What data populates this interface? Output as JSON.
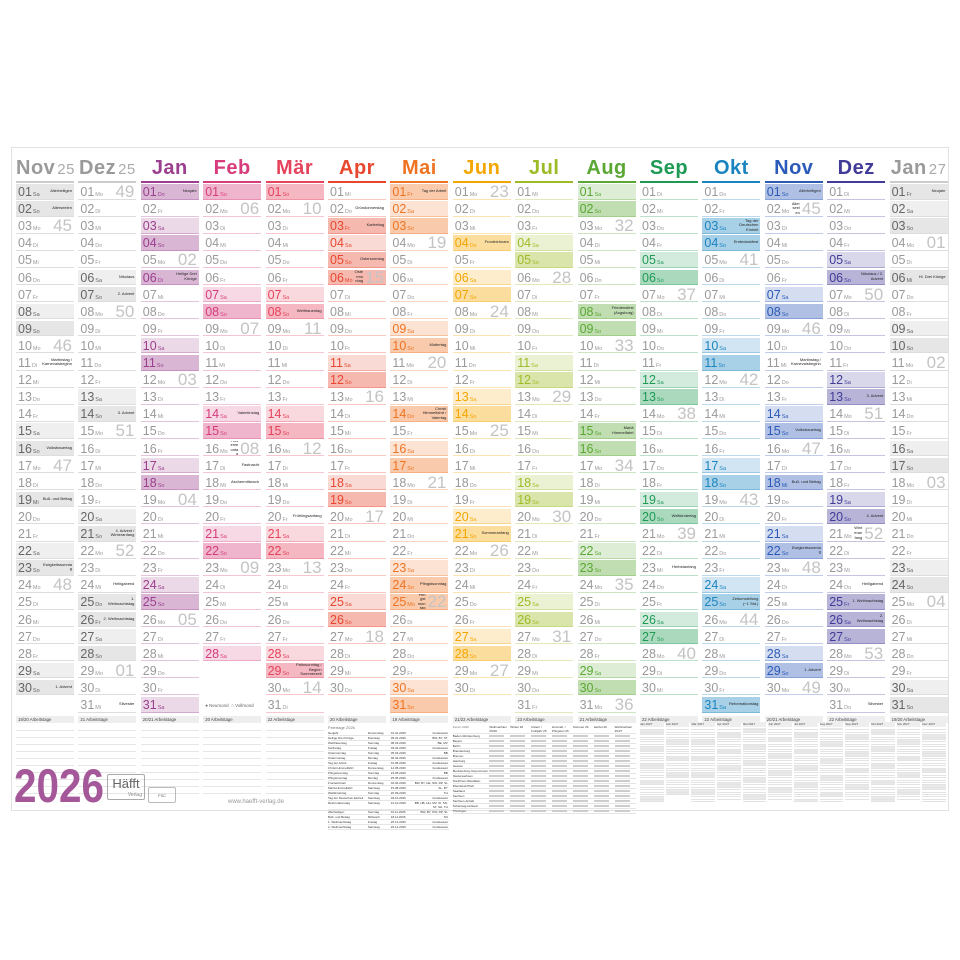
{
  "weekdays": [
    "Mo",
    "Di",
    "Mi",
    "Do",
    "Fr",
    "Sa",
    "So"
  ],
  "months": [
    {
      "name": "Nov",
      "suffix": "25",
      "year": 2025,
      "month": 11,
      "color": "#9a9a9a",
      "workdays": "19/20 Arbeitstage",
      "highlight": [
        1,
        19
      ],
      "labels": {
        "1": "Allerheiligen",
        "2": "Allerseelen",
        "11": "Martinstag / Karnevalsbeginn",
        "16": "Volkstrauertag",
        "19": "Buß- und Bettag",
        "23": "Ewigkeitssonntag",
        "30": "1. Advent"
      }
    },
    {
      "name": "Dez",
      "suffix": "25",
      "year": 2025,
      "month": 12,
      "color": "#9a9a9a",
      "workdays": "21 Arbeitstage",
      "highlight": [
        25,
        26
      ],
      "labels": {
        "6": "Nikolaus",
        "7": "2. Advent",
        "14": "3. Advent",
        "21": "4. Advent / Winteranfang",
        "24": "Heiligabend",
        "25": "1. Weihnachtstag",
        "26": "2. Weihnachtstag",
        "31": "Silvester"
      }
    },
    {
      "name": "Jan",
      "suffix": "",
      "year": 2026,
      "month": 1,
      "color": "#9c3f8e",
      "workdays": "20/21 Arbeitstage",
      "highlight": [
        1,
        6
      ],
      "labels": {
        "1": "Neujahr",
        "6": "Heilige Drei Könige"
      }
    },
    {
      "name": "Feb",
      "suffix": "",
      "year": 2026,
      "month": 2,
      "color": "#d63c7c",
      "workdays": "20 Arbeitstage",
      "highlight": [],
      "labels": {
        "14": "Valentinstag",
        "16": "Rosenmontag",
        "17": "Fastnacht",
        "18": "Aschermittwoch"
      }
    },
    {
      "name": "Mär",
      "suffix": "",
      "year": 2026,
      "month": 3,
      "color": "#e6435c",
      "workdays": "22 Arbeitstage",
      "highlight": [],
      "labels": {
        "8": "Weltfrauentag",
        "20": "Frühlingsanfang",
        "29": "Palmsonntag / Beginn Sommerzeit"
      }
    },
    {
      "name": "Apr",
      "suffix": "",
      "year": 2026,
      "month": 4,
      "color": "#e8472f",
      "workdays": "20 Arbeitstage",
      "highlight": [
        3,
        6
      ],
      "labels": {
        "2": "Gründonnerstag",
        "3": "Karfreitag",
        "5": "Ostersonntag",
        "6": "Ostermontag"
      }
    },
    {
      "name": "Mai",
      "suffix": "",
      "year": 2026,
      "month": 5,
      "color": "#ee7423",
      "workdays": "19 Arbeitstage",
      "highlight": [
        1,
        14,
        25
      ],
      "labels": {
        "1": "Tag der Arbeit",
        "10": "Muttertag",
        "14": "Christi Himmelfahrt / Vatertag",
        "24": "Pfingstsonntag",
        "25": "Pfingstmontag"
      }
    },
    {
      "name": "Jun",
      "suffix": "",
      "year": 2026,
      "month": 6,
      "color": "#f4a600",
      "workdays": "21/22 Arbeitstage",
      "highlight": [
        4
      ],
      "labels": {
        "4": "Fronleichnam",
        "21": "Sommeranfang"
      }
    },
    {
      "name": "Jul",
      "suffix": "",
      "year": 2026,
      "month": 7,
      "color": "#9dbb24",
      "workdays": "23 Arbeitstage",
      "highlight": [],
      "labels": {}
    },
    {
      "name": "Aug",
      "suffix": "",
      "year": 2026,
      "month": 8,
      "color": "#5aa833",
      "workdays": "21 Arbeitstage",
      "highlight": [
        8,
        15
      ],
      "labels": {
        "8": "Friedensfest (Augsburg)",
        "15": "Mariä Himmelfahrt"
      }
    },
    {
      "name": "Sep",
      "suffix": "",
      "year": 2026,
      "month": 9,
      "color": "#1f9a55",
      "workdays": "22 Arbeitstage",
      "highlight": [],
      "labels": {
        "20": "Weltkindertag",
        "23": "Herbstanfang"
      }
    },
    {
      "name": "Okt",
      "suffix": "",
      "year": 2026,
      "month": 10,
      "color": "#1a84c0",
      "workdays": "22 Arbeitstage",
      "highlight": [
        3,
        31
      ],
      "labels": {
        "3": "Tag der Deutschen Einheit",
        "4": "Erntedankfest",
        "25": "Zeitumstellung (−1 Std.)",
        "31": "Reformationstag"
      }
    },
    {
      "name": "Nov",
      "suffix": "",
      "year": 2026,
      "month": 11,
      "color": "#2c5ab8",
      "workdays": "20/21 Arbeitstage",
      "highlight": [
        1,
        18
      ],
      "labels": {
        "1": "Allerheiligen",
        "2": "Allerseelen",
        "11": "Martinstag / Karnevalsbeginn",
        "15": "Volkstrauertag",
        "18": "Buß- und Bettag",
        "22": "Ewigkeitssonntag",
        "29": "1. Advent"
      }
    },
    {
      "name": "Dez",
      "suffix": "",
      "year": 2026,
      "month": 12,
      "color": "#423b98",
      "workdays": "22 Arbeitstage",
      "highlight": [
        25,
        26
      ],
      "labels": {
        "6": "Nikolaus / 2. Advent",
        "13": "3. Advent",
        "20": "4. Advent",
        "21": "Winteranfang",
        "24": "Heiligabend",
        "25": "1. Weihnachtstag",
        "26": "2. Weihnachtstag",
        "31": "Silvester"
      }
    },
    {
      "name": "Jan",
      "suffix": "27",
      "year": 2027,
      "month": 1,
      "color": "#9a9a9a",
      "workdays": "19/20 Arbeitstage",
      "highlight": [
        1,
        6
      ],
      "labels": {
        "1": "Neujahr",
        "6": "Hl. Drei Könige"
      }
    }
  ],
  "legend": {
    "new_moon": "● Neumond",
    "full_moon": "○ Vollmond"
  },
  "year_title": "2026",
  "brand": {
    "name": "Häfft",
    "sub": "Verlag",
    "fsc": "FSC"
  },
  "url": "www.haefft-verlag.de",
  "holidays_table": {
    "title": "Feiertage 2026",
    "rows": [
      [
        "Neujahr",
        "Donnerstag",
        "01.01.2026",
        "bundesweit"
      ],
      [
        "Heilige Drei Könige",
        "Dienstag",
        "06.01.2026",
        "BW, BY, ST"
      ],
      [
        "Weltfrauentag",
        "Sonntag",
        "08.03.2026",
        "BE, MV"
      ],
      [
        "Karfreitag",
        "Freitag",
        "03.04.2026",
        "bundesweit"
      ],
      [
        "Ostersonntag",
        "Sonntag",
        "05.04.2026",
        "BB"
      ],
      [
        "Ostermontag",
        "Montag",
        "06.04.2026",
        "bundesweit"
      ],
      [
        "Tag der Arbeit",
        "Freitag",
        "01.05.2026",
        "bundesweit"
      ],
      [
        "Christi Himmelfahrt",
        "Donnerstag",
        "14.05.2026",
        "bundesweit"
      ],
      [
        "Pfingstsonntag",
        "Sonntag",
        "24.05.2026",
        "BB"
      ],
      [
        "Pfingstmontag",
        "Montag",
        "25.05.2026",
        "bundesweit"
      ],
      [
        "Fronleichnam",
        "Donnerstag",
        "04.06.2026",
        "BW, BY, HE, NW, RP, SL"
      ],
      [
        "Mariä Himmelfahrt",
        "Samstag",
        "15.08.2026",
        "SL, BY"
      ],
      [
        "Weltkindertag",
        "Sonntag",
        "20.09.2026",
        "TH"
      ],
      [
        "Tag der Deutschen Einheit",
        "Samstag",
        "03.10.2026",
        "bundesweit"
      ],
      [
        "Reformationstag",
        "Samstag",
        "31.10.2026",
        "BB, HB, HH, MV, NI, SN, ST, SH, TH"
      ],
      [
        "Allerheiligen",
        "Sonntag",
        "01.11.2026",
        "BW, BY, NW, RP, SL"
      ],
      [
        "Buß- und Bettag",
        "Mittwoch",
        "18.11.2026",
        "SN"
      ],
      [
        "1. Weihnachtstag",
        "Freitag",
        "25.12.2026",
        "bundesweit"
      ],
      [
        "2. Weihnachtstag",
        "Samstag",
        "26.12.2026",
        "bundesweit"
      ]
    ]
  },
  "school_holidays": {
    "title": "Ferien 2026",
    "columns": [
      "Weihnachten 25/26",
      "Winter 26",
      "Ostern / Frühjahr 26",
      "Himmelf. / Pfingsten 26",
      "Sommer 26",
      "Herbst 26",
      "Weihnachten 26/27"
    ],
    "states": [
      "Baden-Württemberg",
      "Bayern",
      "Berlin",
      "Brandenburg",
      "Bremen",
      "Hamburg",
      "Hessen",
      "Mecklenburg-Vorpommern",
      "Niedersachsen",
      "Nordrhein-Westfalen",
      "Rheinland-Pfalz",
      "Saarland",
      "Sachsen",
      "Sachsen-Anhalt",
      "Schleswig-Holstein",
      "Thüringen"
    ]
  },
  "mini_calendar": {
    "months": [
      "Jan 2027",
      "Feb 2027",
      "Mär 2027",
      "Apr 2027",
      "Mai 2027",
      "Jun 2027",
      "Jul 2027",
      "Aug 2027",
      "Sep 2027",
      "Okt 2027",
      "Nov 2027",
      "Dez 2027"
    ]
  }
}
